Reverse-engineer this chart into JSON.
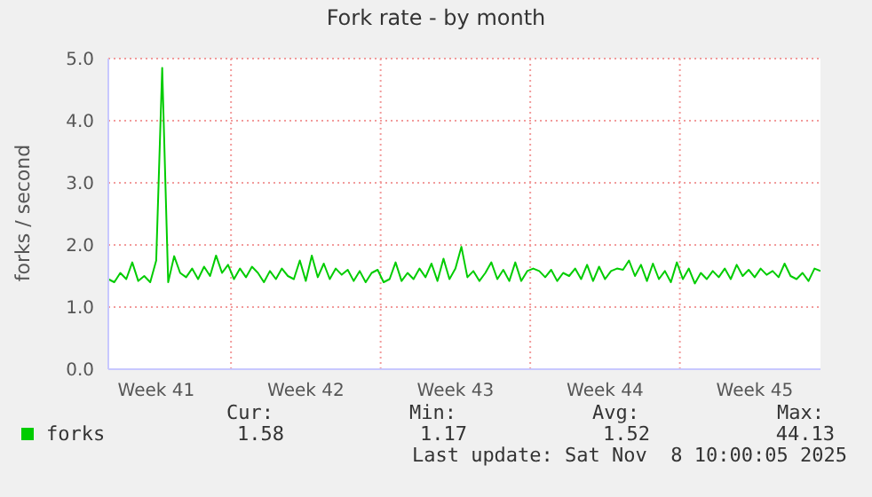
{
  "chart_data": {
    "type": "line",
    "title": "Fork rate - by month",
    "ylabel": "forks / second",
    "categories": [
      null,
      null,
      null,
      null,
      null,
      null,
      null,
      null,
      "Week 41",
      null,
      null,
      null,
      null,
      null,
      null,
      null,
      null,
      null,
      null,
      null,
      null,
      null,
      null,
      null,
      null,
      null,
      null,
      null,
      null,
      null,
      null,
      null,
      null,
      "Week 42",
      null,
      null,
      null,
      null,
      null,
      null,
      null,
      null,
      null,
      null,
      null,
      null,
      null,
      null,
      null,
      null,
      null,
      null,
      null,
      null,
      null,
      null,
      null,
      null,
      "Week 43",
      null,
      null,
      null,
      null,
      null,
      null,
      null,
      null,
      null,
      null,
      null,
      null,
      null,
      null,
      null,
      null,
      null,
      null,
      null,
      null,
      null,
      null,
      null,
      null,
      "Week 44",
      null,
      null,
      null,
      null,
      null,
      null,
      null,
      null,
      null,
      null,
      null,
      null,
      null,
      null,
      null,
      null,
      null,
      null,
      null,
      null,
      null,
      null,
      null,
      null,
      "Week 45",
      null,
      null,
      null,
      null,
      null,
      null,
      null,
      null,
      null,
      null,
      null
    ],
    "series": [
      {
        "name": "forks",
        "color": "#00cc00",
        "values": [
          1.45,
          1.4,
          1.55,
          1.45,
          1.72,
          1.42,
          1.5,
          1.4,
          1.75,
          4.85,
          1.4,
          1.82,
          1.55,
          1.48,
          1.62,
          1.45,
          1.65,
          1.5,
          1.83,
          1.55,
          1.68,
          1.45,
          1.62,
          1.48,
          1.65,
          1.55,
          1.4,
          1.58,
          1.45,
          1.62,
          1.5,
          1.45,
          1.75,
          1.42,
          1.83,
          1.48,
          1.7,
          1.45,
          1.62,
          1.52,
          1.6,
          1.42,
          1.58,
          1.4,
          1.55,
          1.6,
          1.4,
          1.45,
          1.72,
          1.42,
          1.55,
          1.45,
          1.62,
          1.48,
          1.7,
          1.42,
          1.78,
          1.45,
          1.62,
          1.97,
          1.48,
          1.58,
          1.42,
          1.55,
          1.72,
          1.45,
          1.6,
          1.42,
          1.72,
          1.42,
          1.58,
          1.62,
          1.58,
          1.48,
          1.6,
          1.42,
          1.55,
          1.5,
          1.62,
          1.45,
          1.68,
          1.42,
          1.65,
          1.45,
          1.58,
          1.62,
          1.6,
          1.75,
          1.5,
          1.68,
          1.42,
          1.7,
          1.45,
          1.58,
          1.4,
          1.72,
          1.45,
          1.62,
          1.38,
          1.55,
          1.45,
          1.58,
          1.48,
          1.62,
          1.45,
          1.68,
          1.5,
          1.6,
          1.48,
          1.62,
          1.52,
          1.58,
          1.48,
          1.7,
          1.5,
          1.45,
          1.55,
          1.42,
          1.62,
          1.58
        ]
      }
    ],
    "ylim": [
      0,
      5
    ],
    "yticks": [
      {
        "value": 0,
        "label": "0.0"
      },
      {
        "value": 1,
        "label": "1.0"
      },
      {
        "value": 2,
        "label": "2.0"
      },
      {
        "value": 3,
        "label": "3.0"
      },
      {
        "value": 4,
        "label": "4.0"
      },
      {
        "value": 5,
        "label": "5.0"
      }
    ],
    "grid": true,
    "legend": "bottom left",
    "marker": "none",
    "line_style": "solid",
    "annotations": [
      "Cur:",
      "1.58",
      "Min:",
      "1.17",
      "Avg:",
      "1.52",
      "Max:",
      "44.13",
      "Last update: Sat Nov  8 10:00:05 2025"
    ]
  }
}
